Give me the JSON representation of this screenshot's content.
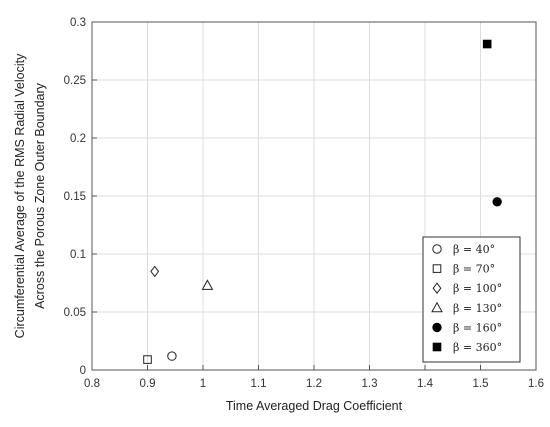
{
  "chart_data": {
    "type": "scatter",
    "title": "",
    "xlabel": "Time Averaged Drag Coefficient",
    "ylabel": [
      "Circumferential Average of the RMS Radial Velocity",
      "Across the Porous Zone Outer Boundary"
    ],
    "xlim": [
      0.8,
      1.6
    ],
    "ylim": [
      0,
      0.3
    ],
    "xticks": [
      0.8,
      0.9,
      1,
      1.1,
      1.2,
      1.3,
      1.4,
      1.5,
      1.6
    ],
    "yticks": [
      0,
      0.05,
      0.1,
      0.15,
      0.2,
      0.25,
      0.3
    ],
    "xtick_labels": [
      "0.8",
      "0.9",
      "1",
      "1.1",
      "1.2",
      "1.3",
      "1.4",
      "1.5",
      "1.6"
    ],
    "ytick_labels": [
      "0",
      "0.05",
      "0.1",
      "0.15",
      "0.2",
      "0.25",
      "0.3"
    ],
    "grid": true,
    "legend_position": "bottom-right",
    "series": [
      {
        "name": "β = 40°",
        "marker": "circle",
        "filled": false,
        "x": 0.944,
        "y": 0.012
      },
      {
        "name": "β = 70°",
        "marker": "square",
        "filled": false,
        "x": 0.9,
        "y": 0.009
      },
      {
        "name": "β = 100°",
        "marker": "diamond",
        "filled": false,
        "x": 0.913,
        "y": 0.085
      },
      {
        "name": "β = 130°",
        "marker": "triangle",
        "filled": false,
        "x": 1.008,
        "y": 0.073
      },
      {
        "name": "β = 160°",
        "marker": "circle-filled",
        "filled": true,
        "x": 1.53,
        "y": 0.145
      },
      {
        "name": "β = 360°",
        "marker": "square-filled",
        "filled": true,
        "x": 1.512,
        "y": 0.281
      }
    ]
  }
}
